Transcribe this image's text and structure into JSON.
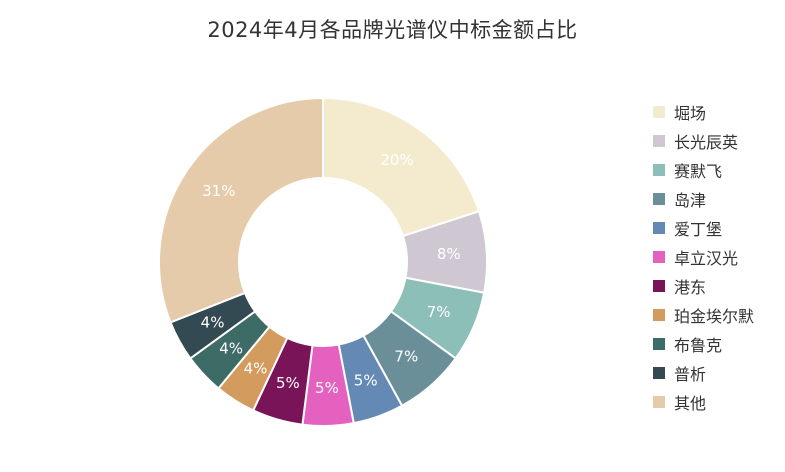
{
  "chart_data": {
    "type": "pie",
    "title": "2024年4月各品牌光谱仪中标金额占比",
    "categories": [
      "堀场",
      "长光辰英",
      "赛默飞",
      "岛津",
      "爱丁堡",
      "卓立汉光",
      "港东",
      "珀金埃尔默",
      "布鲁克",
      "普析",
      "其他"
    ],
    "values": [
      20,
      8,
      7,
      7,
      5,
      5,
      5,
      4,
      4,
      4,
      31
    ],
    "value_labels": [
      "20%",
      "8%",
      "7%",
      "7%",
      "5%",
      "5%",
      "5%",
      "4%",
      "4%",
      "4%",
      "31%"
    ],
    "colors": [
      "#f4ebcf",
      "#cfc8d3",
      "#8cbfb7",
      "#6b8f99",
      "#6389b4",
      "#e461bf",
      "#7a1458",
      "#d39b5e",
      "#3d6b66",
      "#344a52",
      "#e5cbaa"
    ],
    "label_colors": [
      "#ffffff",
      "#ffffff",
      "#ffffff",
      "#ffffff",
      "#ffffff",
      "#ffffff",
      "#ffffff",
      "#ffffff",
      "#ffffff",
      "#ffffff",
      "#ffffff"
    ],
    "donut": true,
    "legend_position": "right"
  }
}
